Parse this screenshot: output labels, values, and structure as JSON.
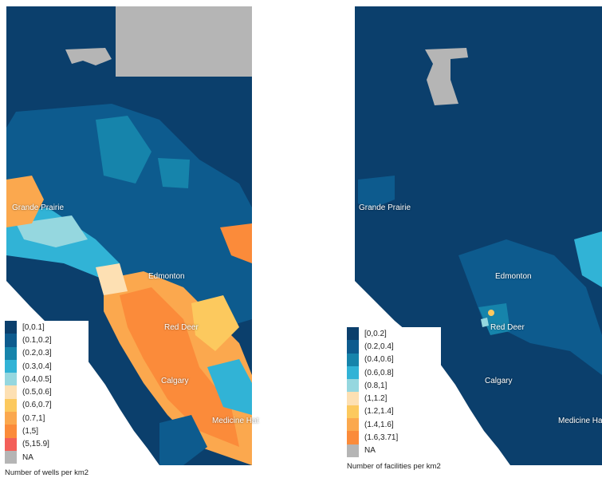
{
  "maps": [
    {
      "legend_title": "Number of wells per km2",
      "legend": [
        {
          "label": "[0,0.1]",
          "color": "#0b3f6c"
        },
        {
          "label": "(0.1,0.2]",
          "color": "#0d5b8e"
        },
        {
          "label": "(0.2,0.3]",
          "color": "#1684ab"
        },
        {
          "label": "(0.3,0.4]",
          "color": "#31b3d6"
        },
        {
          "label": "(0.4,0.5]",
          "color": "#95d7df"
        },
        {
          "label": "(0.5,0.6]",
          "color": "#fde0b3"
        },
        {
          "label": "(0.6,0.7]",
          "color": "#fcc95e"
        },
        {
          "label": "(0.7,1]",
          "color": "#fba84e"
        },
        {
          "label": "(1,5]",
          "color": "#fb8b3a"
        },
        {
          "label": "(5,15.9]",
          "color": "#f35f59"
        },
        {
          "label": "NA",
          "color": "#b5b5b5"
        }
      ],
      "cities": [
        "Grande Prairie",
        "Edmonton",
        "Red Deer",
        "Calgary",
        "Medicine Hat"
      ]
    },
    {
      "legend_title": "Number of facilities per km2",
      "legend": [
        {
          "label": "[0,0.2]",
          "color": "#0b3f6c"
        },
        {
          "label": "(0.2,0.4]",
          "color": "#0d5b8e"
        },
        {
          "label": "(0.4,0.6]",
          "color": "#1684ab"
        },
        {
          "label": "(0.6,0.8]",
          "color": "#31b3d6"
        },
        {
          "label": "(0.8,1]",
          "color": "#95d7df"
        },
        {
          "label": "(1,1.2]",
          "color": "#fde0b3"
        },
        {
          "label": "(1.2,1.4]",
          "color": "#fcc95e"
        },
        {
          "label": "(1.4,1.6]",
          "color": "#fba84e"
        },
        {
          "label": "(1.6,3.71]",
          "color": "#fb8b3a"
        },
        {
          "label": "NA",
          "color": "#b5b5b5"
        }
      ],
      "cities": [
        "Grande Prairie",
        "Edmonton",
        "Red Deer",
        "Calgary",
        "Medicine Ha"
      ]
    }
  ]
}
